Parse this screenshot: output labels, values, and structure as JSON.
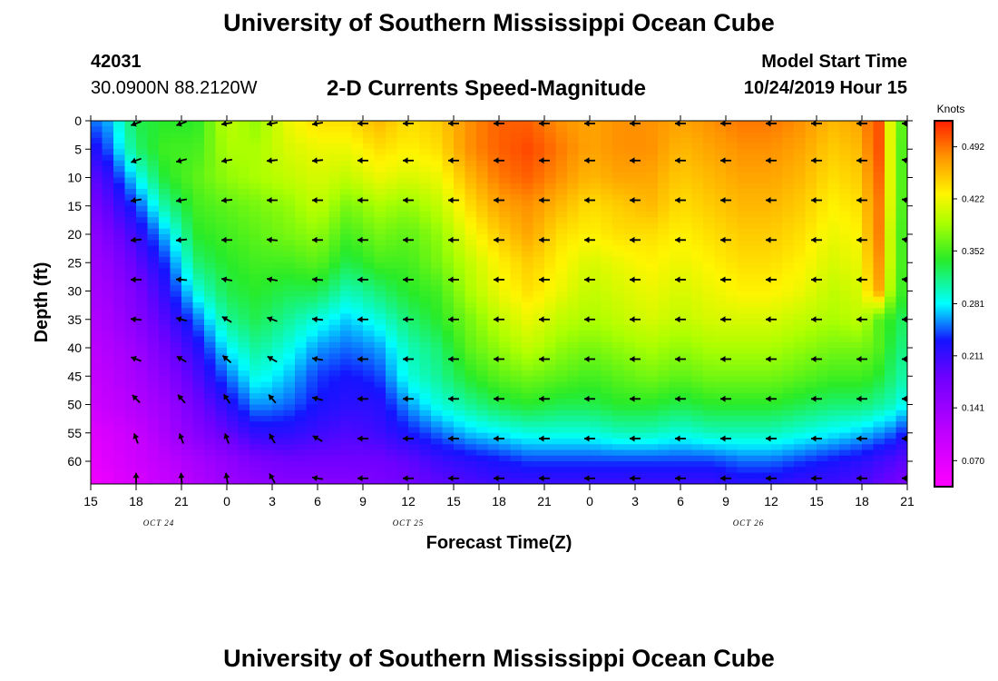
{
  "header": {
    "title_top": "University of Southern Mississippi Ocean Cube",
    "title_bottom": "University of Southern Mississippi Ocean Cube",
    "station_id": "42031",
    "station_coords": "30.0900N 88.2120W",
    "plot_title": "2-D Currents Speed-Magnitude",
    "model_start_label": "Model Start Time",
    "model_start_value": "10/24/2019 Hour 15"
  },
  "chart_data": {
    "type": "heatmap",
    "title": "2-D Currents Speed-Magnitude",
    "xlabel": "Forecast Time(Z)",
    "ylabel": "Depth (ft)",
    "x_hours_since_start": [
      0,
      3,
      6,
      9,
      12,
      15,
      18,
      21,
      24,
      27,
      30,
      33,
      36,
      39,
      42,
      45,
      48,
      51,
      54
    ],
    "x_tick_labels": [
      "15",
      "18",
      "21",
      "0",
      "3",
      "6",
      "9",
      "12",
      "15",
      "18",
      "21",
      "0",
      "3",
      "6",
      "9",
      "12",
      "15",
      "18",
      "21"
    ],
    "day_labels": [
      {
        "text": "OCT 24",
        "hour": 4.5
      },
      {
        "text": "OCT 25",
        "hour": 21
      },
      {
        "text": "OCT 26",
        "hour": 43.5
      }
    ],
    "y_ticks": [
      0,
      5,
      10,
      15,
      20,
      25,
      30,
      35,
      40,
      45,
      50,
      55,
      60
    ],
    "ylim": [
      0,
      64
    ],
    "xlim": [
      0,
      54
    ],
    "colorbar": {
      "label": "Knots",
      "ticks": [
        0.07,
        0.141,
        0.211,
        0.281,
        0.352,
        0.422,
        0.492
      ],
      "tick_labels": [
        "0.070",
        "0.141",
        "0.211",
        "0.281",
        "0.352",
        "0.422",
        "0.492"
      ],
      "range": [
        0.035,
        0.527
      ]
    },
    "speed_grid": {
      "hours": [
        0,
        1,
        3,
        5,
        7,
        9,
        11,
        13,
        15,
        17,
        19,
        21,
        23,
        25,
        27,
        29,
        31,
        33,
        35,
        37,
        39,
        41,
        43,
        45,
        47,
        49,
        51,
        52,
        53,
        54
      ],
      "depths": [
        0,
        5,
        10,
        15,
        20,
        25,
        30,
        35,
        40,
        45,
        50,
        55,
        60,
        64
      ],
      "values_knots": [
        [
          0.25,
          0.26,
          0.33,
          0.34,
          0.34,
          0.4,
          0.38,
          0.42,
          0.44,
          0.44,
          0.46,
          0.44,
          0.45,
          0.48,
          0.5,
          0.5,
          0.48,
          0.47,
          0.48,
          0.48,
          0.47,
          0.48,
          0.49,
          0.49,
          0.48,
          0.46,
          0.47,
          0.52,
          0.4,
          0.34
        ],
        [
          0.22,
          0.24,
          0.32,
          0.35,
          0.35,
          0.39,
          0.39,
          0.41,
          0.42,
          0.42,
          0.44,
          0.43,
          0.44,
          0.48,
          0.5,
          0.51,
          0.49,
          0.47,
          0.48,
          0.48,
          0.46,
          0.47,
          0.48,
          0.48,
          0.47,
          0.45,
          0.46,
          0.52,
          0.4,
          0.33
        ],
        [
          0.19,
          0.21,
          0.28,
          0.34,
          0.36,
          0.38,
          0.39,
          0.4,
          0.41,
          0.4,
          0.42,
          0.41,
          0.42,
          0.46,
          0.49,
          0.5,
          0.48,
          0.46,
          0.47,
          0.47,
          0.45,
          0.46,
          0.47,
          0.47,
          0.46,
          0.44,
          0.45,
          0.51,
          0.4,
          0.33
        ],
        [
          0.17,
          0.19,
          0.24,
          0.31,
          0.35,
          0.36,
          0.37,
          0.38,
          0.4,
          0.37,
          0.39,
          0.38,
          0.4,
          0.44,
          0.47,
          0.48,
          0.46,
          0.44,
          0.45,
          0.46,
          0.44,
          0.45,
          0.46,
          0.46,
          0.45,
          0.43,
          0.44,
          0.5,
          0.4,
          0.33
        ],
        [
          0.15,
          0.17,
          0.21,
          0.27,
          0.34,
          0.35,
          0.36,
          0.37,
          0.38,
          0.35,
          0.37,
          0.36,
          0.38,
          0.42,
          0.45,
          0.47,
          0.44,
          0.43,
          0.44,
          0.44,
          0.43,
          0.44,
          0.45,
          0.45,
          0.44,
          0.42,
          0.43,
          0.5,
          0.39,
          0.33
        ],
        [
          0.14,
          0.15,
          0.19,
          0.24,
          0.32,
          0.34,
          0.35,
          0.35,
          0.36,
          0.33,
          0.35,
          0.35,
          0.37,
          0.4,
          0.43,
          0.45,
          0.43,
          0.41,
          0.42,
          0.43,
          0.42,
          0.43,
          0.44,
          0.44,
          0.43,
          0.41,
          0.42,
          0.49,
          0.39,
          0.33
        ],
        [
          0.13,
          0.14,
          0.17,
          0.22,
          0.29,
          0.33,
          0.34,
          0.33,
          0.33,
          0.3,
          0.32,
          0.34,
          0.35,
          0.39,
          0.42,
          0.44,
          0.42,
          0.4,
          0.41,
          0.42,
          0.41,
          0.42,
          0.43,
          0.43,
          0.42,
          0.4,
          0.41,
          0.48,
          0.38,
          0.33
        ],
        [
          0.12,
          0.13,
          0.16,
          0.2,
          0.25,
          0.31,
          0.33,
          0.31,
          0.29,
          0.27,
          0.29,
          0.32,
          0.34,
          0.37,
          0.4,
          0.42,
          0.4,
          0.39,
          0.4,
          0.41,
          0.4,
          0.41,
          0.41,
          0.41,
          0.4,
          0.39,
          0.4,
          0.36,
          0.34,
          0.32
        ],
        [
          0.11,
          0.12,
          0.14,
          0.18,
          0.22,
          0.28,
          0.31,
          0.29,
          0.26,
          0.25,
          0.26,
          0.3,
          0.32,
          0.36,
          0.38,
          0.4,
          0.38,
          0.37,
          0.38,
          0.39,
          0.38,
          0.39,
          0.39,
          0.39,
          0.38,
          0.37,
          0.37,
          0.36,
          0.33,
          0.31
        ],
        [
          0.1,
          0.11,
          0.13,
          0.16,
          0.2,
          0.25,
          0.29,
          0.27,
          0.24,
          0.23,
          0.24,
          0.29,
          0.31,
          0.34,
          0.36,
          0.37,
          0.36,
          0.35,
          0.36,
          0.37,
          0.36,
          0.37,
          0.37,
          0.37,
          0.36,
          0.35,
          0.35,
          0.34,
          0.32,
          0.3
        ],
        [
          0.09,
          0.1,
          0.12,
          0.14,
          0.18,
          0.22,
          0.26,
          0.25,
          0.23,
          0.22,
          0.22,
          0.26,
          0.29,
          0.31,
          0.33,
          0.34,
          0.33,
          0.33,
          0.34,
          0.34,
          0.33,
          0.34,
          0.34,
          0.34,
          0.33,
          0.32,
          0.32,
          0.31,
          0.3,
          0.28
        ],
        [
          0.07,
          0.08,
          0.1,
          0.13,
          0.16,
          0.19,
          0.22,
          0.22,
          0.21,
          0.2,
          0.21,
          0.23,
          0.25,
          0.27,
          0.28,
          0.29,
          0.29,
          0.29,
          0.3,
          0.3,
          0.29,
          0.3,
          0.3,
          0.3,
          0.29,
          0.28,
          0.27,
          0.26,
          0.25,
          0.23
        ],
        [
          0.06,
          0.07,
          0.09,
          0.11,
          0.13,
          0.15,
          0.17,
          0.18,
          0.18,
          0.18,
          0.18,
          0.19,
          0.21,
          0.22,
          0.23,
          0.24,
          0.24,
          0.24,
          0.24,
          0.24,
          0.24,
          0.24,
          0.25,
          0.25,
          0.24,
          0.23,
          0.22,
          0.21,
          0.2,
          0.19
        ],
        [
          0.05,
          0.06,
          0.08,
          0.1,
          0.12,
          0.14,
          0.15,
          0.16,
          0.16,
          0.16,
          0.17,
          0.18,
          0.19,
          0.2,
          0.21,
          0.21,
          0.21,
          0.21,
          0.21,
          0.21,
          0.21,
          0.21,
          0.22,
          0.22,
          0.21,
          0.21,
          0.2,
          0.19,
          0.18,
          0.17
        ]
      ]
    },
    "vectors": {
      "hours": [
        3,
        6,
        9,
        12,
        15,
        18,
        21,
        24,
        27,
        30,
        33,
        36,
        39,
        42,
        45,
        48,
        51,
        54
      ],
      "depths": [
        0,
        7,
        14,
        21,
        28,
        35,
        42,
        49,
        56,
        63
      ],
      "direction_note": "arrows point to the direction the current flows toward; westward (left) at most depths, north-westward near bottom in early hours",
      "angles_deg_ccw_from_east": [
        [
          200,
          200,
          190,
          190,
          190,
          180,
          180,
          180,
          180,
          180,
          180,
          180,
          180,
          180,
          180,
          180,
          180,
          180
        ],
        [
          200,
          195,
          190,
          185,
          185,
          180,
          180,
          180,
          180,
          180,
          180,
          180,
          180,
          180,
          180,
          180,
          180,
          170
        ],
        [
          190,
          190,
          185,
          180,
          180,
          180,
          180,
          180,
          180,
          180,
          180,
          180,
          180,
          180,
          180,
          180,
          180,
          170
        ],
        [
          185,
          185,
          180,
          175,
          180,
          180,
          180,
          180,
          180,
          180,
          180,
          180,
          180,
          180,
          180,
          180,
          180,
          170
        ],
        [
          180,
          175,
          170,
          170,
          175,
          180,
          180,
          180,
          180,
          180,
          180,
          180,
          180,
          180,
          180,
          180,
          180,
          175
        ],
        [
          175,
          165,
          150,
          160,
          175,
          180,
          180,
          180,
          180,
          180,
          180,
          180,
          180,
          180,
          180,
          180,
          180,
          180
        ],
        [
          160,
          150,
          140,
          150,
          170,
          180,
          180,
          180,
          180,
          180,
          180,
          180,
          180,
          180,
          180,
          180,
          180,
          180
        ],
        [
          135,
          130,
          125,
          130,
          165,
          180,
          180,
          180,
          180,
          180,
          180,
          180,
          180,
          180,
          180,
          180,
          180,
          180
        ],
        [
          110,
          110,
          110,
          120,
          150,
          180,
          180,
          180,
          180,
          180,
          180,
          180,
          180,
          180,
          180,
          180,
          180,
          180
        ],
        [
          90,
          95,
          100,
          120,
          170,
          180,
          180,
          180,
          180,
          180,
          180,
          180,
          180,
          180,
          180,
          180,
          180,
          180
        ]
      ]
    }
  }
}
